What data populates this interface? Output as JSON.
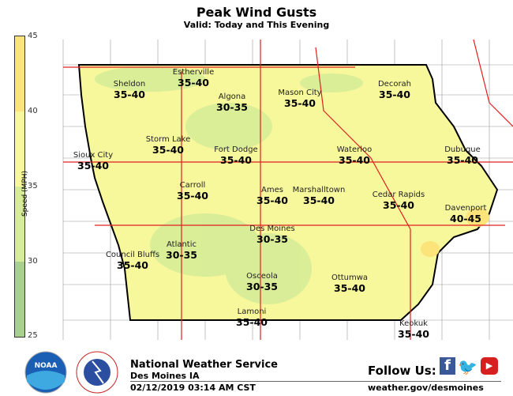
{
  "header": {
    "title": "Peak Wind Gusts",
    "subtitle": "Valid: Today and This Evening"
  },
  "legend": {
    "label": "Speed (MPH)",
    "ticks": [
      "45",
      "40",
      "35",
      "30",
      "25"
    ],
    "bins": [
      {
        "range": "40-45",
        "color": "#fce37a"
      },
      {
        "range": "35-40",
        "color": "#f7f79c"
      },
      {
        "range": "30-35",
        "color": "#d6ec98"
      },
      {
        "range": "25-30",
        "color": "#a9d18e"
      }
    ]
  },
  "colors": {
    "fill_35_40": "#f7f79c",
    "fill_30_35": "#d6ec98",
    "fill_40_45": "#fce37a",
    "highways": "#e02020",
    "counties": "#8a8a8a"
  },
  "cities": [
    {
      "name": "Estherville",
      "value": "35-40"
    },
    {
      "name": "Sheldon",
      "value": "35-40"
    },
    {
      "name": "Algona",
      "value": "30-35"
    },
    {
      "name": "Mason City",
      "value": "35-40"
    },
    {
      "name": "Decorah",
      "value": "35-40"
    },
    {
      "name": "Storm Lake",
      "value": "35-40"
    },
    {
      "name": "Fort Dodge",
      "value": "35-40"
    },
    {
      "name": "Waterloo",
      "value": "35-40"
    },
    {
      "name": "Dubuque",
      "value": "35-40"
    },
    {
      "name": "Sioux City",
      "value": "35-40"
    },
    {
      "name": "Carroll",
      "value": "35-40"
    },
    {
      "name": "Ames",
      "value": "35-40"
    },
    {
      "name": "Marshalltown",
      "value": "35-40"
    },
    {
      "name": "Cedar Rapids",
      "value": "35-40"
    },
    {
      "name": "Davenport",
      "value": "40-45"
    },
    {
      "name": "Des Moines",
      "value": "30-35"
    },
    {
      "name": "Atlantic",
      "value": "30-35"
    },
    {
      "name": "Council Bluffs",
      "value": "35-40"
    },
    {
      "name": "Osceola",
      "value": "30-35"
    },
    {
      "name": "Ottumwa",
      "value": "35-40"
    },
    {
      "name": "Lamoni",
      "value": "35-40"
    },
    {
      "name": "Keokuk",
      "value": "35-40"
    }
  ],
  "footer": {
    "org": "National Weather Service",
    "office": "Des Moines IA",
    "timestamp": "02/12/2019 03:14 AM CST",
    "follow": "Follow Us:",
    "url": "weather.gov/desmoines",
    "logo_noaa": "NOAA",
    "logo_nws": "NATIONAL WEATHER SERVICE",
    "social": [
      "facebook-icon",
      "twitter-icon",
      "youtube-icon"
    ]
  }
}
